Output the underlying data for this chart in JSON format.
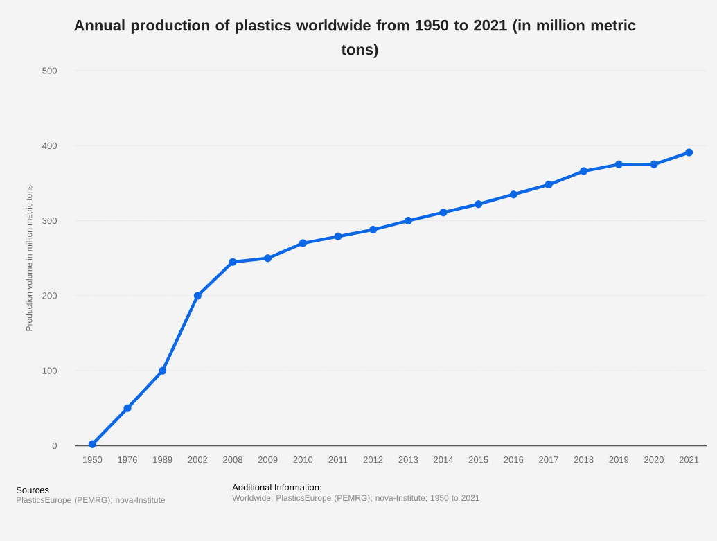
{
  "chart_data": {
    "type": "line",
    "title": "Annual production of plastics worldwide from 1950 to 2021 (in million metric tons)",
    "ylabel": "Production volume in million metric tons",
    "categories": [
      "1950",
      "1976",
      "1989",
      "2002",
      "2008",
      "2009",
      "2010",
      "2011",
      "2012",
      "2013",
      "2014",
      "2015",
      "2016",
      "2017",
      "2018",
      "2019",
      "2020",
      "2021"
    ],
    "values": [
      2,
      50,
      100,
      200,
      245,
      250,
      270,
      279,
      288,
      300,
      311,
      322,
      335,
      348,
      366,
      375,
      375,
      391
    ],
    "color": "#0b67e6",
    "ylim": [
      0,
      500
    ],
    "yticks": [
      0,
      100,
      200,
      300,
      400,
      500
    ],
    "grid": "y",
    "marker": "circle",
    "line_style": "solid",
    "annotations": [
      "Sources",
      "PlasticsEurope (PEMRG); nova-Institute",
      "Additional Information:",
      "Worldwide; PlasticsEurope (PEMRG); nova-Institute; 1950 to 2021"
    ]
  }
}
